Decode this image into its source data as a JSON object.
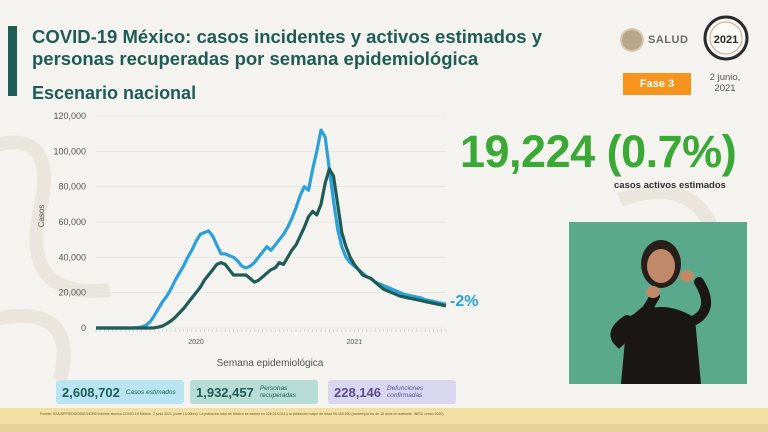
{
  "header": {
    "title": "COVID-19 México: casos incidentes y activos estimados y personas recuperadas por semana epidemiológica",
    "subtitle": "Escenario nacional",
    "salud_label": "SALUD",
    "seal_year": "2021",
    "phase_label": "Fase 3",
    "date": "2 junio, 2021"
  },
  "highlight": {
    "value": "19,224 (0.7%)",
    "caption": "casos activos estimados",
    "color": "#3aa935"
  },
  "chart_data": {
    "type": "line",
    "ylabel": "Casos",
    "xlabel": "Semana epidemiológica",
    "ylim": [
      0,
      120000
    ],
    "yticks": [
      "0",
      "20,000",
      "40,000",
      "60,000",
      "80,000",
      "100,000",
      "120,000"
    ],
    "x_labels": [
      "2020",
      "2021"
    ],
    "annotation": "-2%",
    "series": [
      {
        "color": "#2aa0dc",
        "x": [
          1,
          2,
          3,
          4,
          5,
          6,
          7,
          8,
          9,
          10,
          11,
          12,
          13,
          14,
          15,
          16,
          17,
          18,
          19,
          20,
          21,
          22,
          23,
          24,
          25,
          26,
          27,
          28,
          29,
          30,
          31,
          32,
          33,
          34,
          35,
          36,
          37,
          38,
          39,
          40,
          41,
          42,
          43,
          44,
          45,
          46,
          47,
          48,
          49,
          50,
          51,
          52,
          53,
          54,
          55,
          56,
          57,
          58,
          59,
          60,
          61,
          62,
          63,
          64,
          65,
          66,
          67,
          68,
          69,
          70,
          71,
          72,
          73,
          74,
          75,
          76,
          77,
          78,
          79,
          80,
          81,
          82,
          83,
          84,
          85
        ],
        "values": [
          0,
          0,
          0,
          0,
          0,
          0,
          0,
          0,
          0,
          0,
          200,
          600,
          1500,
          3500,
          7000,
          11000,
          15000,
          18000,
          22000,
          27000,
          31000,
          35000,
          40000,
          44000,
          49000,
          53000,
          54000,
          55000,
          52000,
          47000,
          42000,
          42000,
          41000,
          40000,
          38000,
          35000,
          34000,
          35000,
          37000,
          40000,
          43000,
          46000,
          44000,
          47000,
          50000,
          53000,
          57000,
          62000,
          68000,
          75000,
          80000,
          78000,
          90000,
          100000,
          112000,
          108000,
          90000,
          72000,
          56000,
          46000,
          40000,
          37000,
          35000,
          33000,
          31000,
          29000,
          28000,
          26000,
          25000,
          24000,
          23000,
          22000,
          21000,
          20000,
          19000,
          18500,
          18000,
          17500,
          17000,
          16000,
          15500,
          15000,
          14500,
          14000,
          13500
        ]
      },
      {
        "color": "#1e5c55",
        "x": [
          1,
          2,
          3,
          4,
          5,
          6,
          7,
          8,
          9,
          10,
          11,
          12,
          13,
          14,
          15,
          16,
          17,
          18,
          19,
          20,
          21,
          22,
          23,
          24,
          25,
          26,
          27,
          28,
          29,
          30,
          31,
          32,
          33,
          34,
          35,
          36,
          37,
          38,
          39,
          40,
          41,
          42,
          43,
          44,
          45,
          46,
          47,
          48,
          49,
          50,
          51,
          52,
          53,
          54,
          55,
          56,
          57,
          58,
          59,
          60,
          61,
          62,
          63,
          64,
          65,
          66,
          67,
          68,
          69,
          70,
          71,
          72,
          73,
          74,
          75,
          76,
          77,
          78,
          79,
          80,
          81,
          82,
          83,
          84,
          85
        ],
        "values": [
          0,
          0,
          0,
          0,
          0,
          0,
          0,
          0,
          0,
          0,
          0,
          0,
          0,
          0,
          100,
          500,
          1200,
          2500,
          4000,
          6000,
          8500,
          11000,
          14000,
          17000,
          20000,
          23000,
          27000,
          30000,
          33000,
          36000,
          37000,
          36000,
          33000,
          30000,
          30000,
          30000,
          30000,
          28000,
          26000,
          27000,
          29000,
          31000,
          33000,
          34000,
          37000,
          36000,
          40000,
          44000,
          47000,
          52000,
          57000,
          63000,
          66000,
          64000,
          70000,
          82000,
          90000,
          86000,
          70000,
          54000,
          46000,
          40000,
          36000,
          33000,
          30000,
          29000,
          28000,
          26000,
          24000,
          22000,
          21000,
          20000,
          19000,
          18000,
          17500,
          17000,
          16500,
          16000,
          15500,
          15000,
          14500,
          14000,
          13500,
          13000,
          12500
        ]
      }
    ]
  },
  "stats": [
    {
      "value": "2,608,702",
      "label": "Casos estimados"
    },
    {
      "value": "1,932,457",
      "label": "Personas recuperadas"
    },
    {
      "value": "228,146",
      "label": "Defunciones confirmadas"
    }
  ],
  "footer": {
    "source": "Fuente: SSA/SPPS/DGE/DIE/InDRE/Informe técnico.COVID-19 México. 2 junio 2021 (corte 14:00hrs). La población total de México se asume en 126,014,024 y la población mayor de edad 95,450,930 (contempla los de 18 años en adelante, INEGI censo 2020)."
  }
}
